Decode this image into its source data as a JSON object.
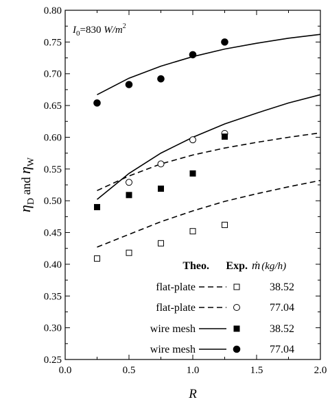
{
  "chart_data": {
    "type": "line",
    "xlabel": "R",
    "ylabel": {
      "eta": "η",
      "sub1": "D",
      "and": " and ",
      "sub2": "W"
    },
    "xlim": [
      0.0,
      2.0
    ],
    "ylim": [
      0.25,
      0.8
    ],
    "x_ticks": [
      "0.0",
      "0.5",
      "1.0",
      "1.5",
      "2.0"
    ],
    "y_ticks": [
      "0.25",
      "0.30",
      "0.35",
      "0.40",
      "0.45",
      "0.50",
      "0.55",
      "0.60",
      "0.65",
      "0.70",
      "0.75",
      "0.80"
    ],
    "annotation": {
      "base": "I",
      "sub": "0",
      "text": "=830 ",
      "unit": "W/m",
      "sup": "2"
    },
    "legend": {
      "headers": {
        "theo": "Theo.",
        "exp": "Exp.",
        "mdot": "ṁ",
        "unit": "(kg/h)"
      },
      "placement": "bottom-right"
    },
    "theoretical": [
      {
        "label": "flat-plate",
        "mdot": "38.52",
        "style": "dashed",
        "x": [
          0.25,
          0.5,
          0.75,
          1.0,
          1.25,
          1.5,
          1.75,
          2.0
        ],
        "y": [
          0.427,
          0.447,
          0.467,
          0.484,
          0.499,
          0.511,
          0.522,
          0.532
        ]
      },
      {
        "label": "flat-plate",
        "mdot": "77.04",
        "style": "dashed",
        "x": [
          0.25,
          0.5,
          0.75,
          1.0,
          1.25,
          1.5,
          1.75,
          2.0
        ],
        "y": [
          0.516,
          0.539,
          0.558,
          0.572,
          0.583,
          0.592,
          0.6,
          0.607
        ]
      },
      {
        "label": "wire mesh",
        "mdot": "38.52",
        "style": "solid",
        "x": [
          0.25,
          0.5,
          0.75,
          1.0,
          1.25,
          1.5,
          1.75,
          2.0
        ],
        "y": [
          0.502,
          0.543,
          0.575,
          0.6,
          0.621,
          0.638,
          0.654,
          0.667
        ]
      },
      {
        "label": "wire mesh",
        "mdot": "77.04",
        "style": "solid",
        "x": [
          0.25,
          0.5,
          0.75,
          1.0,
          1.25,
          1.5,
          1.75,
          2.0
        ],
        "y": [
          0.667,
          0.693,
          0.712,
          0.727,
          0.739,
          0.748,
          0.756,
          0.762
        ]
      }
    ],
    "experimental": [
      {
        "marker": "open-square",
        "mdot": "38.52",
        "x": [
          0.25,
          0.5,
          0.75,
          1.0,
          1.25
        ],
        "y": [
          0.409,
          0.418,
          0.433,
          0.452,
          0.462
        ]
      },
      {
        "marker": "open-circle",
        "mdot": "77.04",
        "x": [
          0.5,
          0.75,
          1.0,
          1.25
        ],
        "y": [
          0.529,
          0.558,
          0.596,
          0.606
        ]
      },
      {
        "marker": "filled-square",
        "mdot": "38.52",
        "x": [
          0.25,
          0.5,
          0.75,
          1.0,
          1.25
        ],
        "y": [
          0.49,
          0.509,
          0.519,
          0.543,
          0.601
        ]
      },
      {
        "marker": "filled-circle",
        "mdot": "77.04",
        "x": [
          0.25,
          0.5,
          0.75,
          1.0,
          1.25
        ],
        "y": [
          0.654,
          0.683,
          0.692,
          0.73,
          0.75
        ]
      }
    ]
  }
}
